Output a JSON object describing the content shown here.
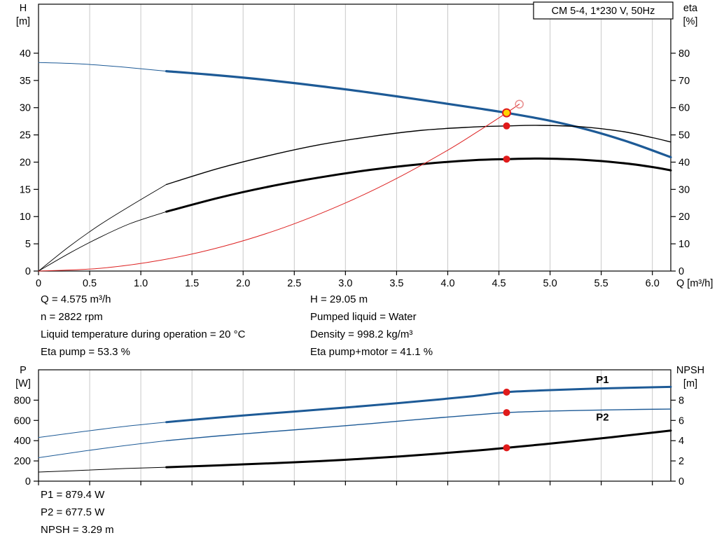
{
  "colors": {
    "curve_blue": "#1d5a96",
    "curve_black": "#000000",
    "curve_red": "#dd2222",
    "marker_red": "#e01b1b",
    "op_yellow": "#ffd500",
    "hollow_ring": "#e88f8f",
    "grid": "#c8c8c8"
  },
  "chart_data": [
    {
      "type": "line",
      "title_box": "CM 5-4, 1*230 V, 50Hz",
      "grid_color": "#c8c8c8",
      "x": {
        "label": "Q [m³/h]",
        "min": 0,
        "max": 6.18,
        "ticks": [
          0,
          0.5,
          1,
          1.5,
          2,
          2.5,
          3,
          3.5,
          4,
          4.5,
          5,
          5.5,
          6
        ],
        "tick_labels": [
          "0",
          "0.5",
          "1.0",
          "1.5",
          "2.0",
          "2.5",
          "3.0",
          "3.5",
          "4.0",
          "4.5",
          "5.0",
          "5.5",
          "6.0"
        ],
        "grid": [
          0.5,
          1,
          1.5,
          2,
          2.5,
          3,
          3.5,
          4,
          4.5,
          5,
          5.5,
          6
        ]
      },
      "y_left": {
        "title": [
          "H",
          "[m]"
        ],
        "min": 0,
        "max": 49,
        "ticks": [
          0,
          5,
          10,
          15,
          20,
          25,
          30,
          35,
          40
        ]
      },
      "y_right": {
        "title": [
          "eta",
          "[%]"
        ],
        "min": 0,
        "max": 98,
        "ticks": [
          0,
          10,
          20,
          30,
          40,
          50,
          60,
          70,
          80
        ]
      },
      "series": [
        {
          "name": "hq-curve-lead",
          "axis": "left",
          "color": "#1d5a96",
          "width": 1,
          "points": [
            [
              0,
              38.3
            ],
            [
              0.4,
              38.05
            ],
            [
              0.8,
              37.5
            ],
            [
              1.25,
              36.7
            ]
          ]
        },
        {
          "name": "hq-curve",
          "axis": "left",
          "color": "#1d5a96",
          "width": 3.2,
          "points": [
            [
              1.25,
              36.7
            ],
            [
              1.75,
              35.95
            ],
            [
              2.25,
              35.05
            ],
            [
              2.75,
              33.95
            ],
            [
              3.25,
              32.75
            ],
            [
              3.75,
              31.4
            ],
            [
              4.25,
              30.0
            ],
            [
              4.575,
              29.05
            ],
            [
              5.0,
              27.6
            ],
            [
              5.4,
              25.8
            ],
            [
              5.8,
              23.5
            ],
            [
              6.18,
              20.9
            ]
          ]
        },
        {
          "name": "eta-pump-lead",
          "axis": "right",
          "color": "#000000",
          "width": 0.9,
          "points": [
            [
              0,
              0
            ],
            [
              0.3,
              9
            ],
            [
              0.6,
              17
            ],
            [
              0.9,
              24
            ],
            [
              1.25,
              31.8
            ]
          ]
        },
        {
          "name": "eta-pump-curve",
          "axis": "right",
          "color": "#000000",
          "width": 1.4,
          "points": [
            [
              1.25,
              31.8
            ],
            [
              1.75,
              37.6
            ],
            [
              2.25,
              42.4
            ],
            [
              2.75,
              46.4
            ],
            [
              3.25,
              49.4
            ],
            [
              3.75,
              51.7
            ],
            [
              4.25,
              52.9
            ],
            [
              4.575,
              53.3
            ],
            [
              4.9,
              53.5
            ],
            [
              5.3,
              53.0
            ],
            [
              5.7,
              51.3
            ],
            [
              6.0,
              49.0
            ],
            [
              6.18,
              47.4
            ]
          ]
        },
        {
          "name": "eta-pump-motor-lead",
          "axis": "right",
          "color": "#000000",
          "width": 0.9,
          "points": [
            [
              0,
              0
            ],
            [
              0.3,
              6.5
            ],
            [
              0.6,
              12.4
            ],
            [
              0.9,
              17.5
            ],
            [
              1.25,
              21.8
            ]
          ]
        },
        {
          "name": "eta-pump-motor-curve",
          "axis": "right",
          "color": "#000000",
          "width": 3,
          "points": [
            [
              1.25,
              21.8
            ],
            [
              1.75,
              26.8
            ],
            [
              2.25,
              31.0
            ],
            [
              2.75,
              34.4
            ],
            [
              3.25,
              37.2
            ],
            [
              3.75,
              39.3
            ],
            [
              4.25,
              40.7
            ],
            [
              4.575,
              41.1
            ],
            [
              4.9,
              41.3
            ],
            [
              5.3,
              40.9
            ],
            [
              5.7,
              39.7
            ],
            [
              6.0,
              38.2
            ],
            [
              6.18,
              37.0
            ]
          ]
        },
        {
          "name": "system-curve",
          "axis": "left",
          "color": "#dd2222",
          "width": 1,
          "points": [
            [
              0,
              0
            ],
            [
              0.6,
              0.5
            ],
            [
              1.2,
              2.0
            ],
            [
              1.8,
              4.5
            ],
            [
              2.4,
              8.0
            ],
            [
              3.0,
              12.5
            ],
            [
              3.5,
              17.0
            ],
            [
              4.0,
              22.2
            ],
            [
              4.3,
              25.7
            ],
            [
              4.575,
              29.05
            ],
            [
              4.7,
              30.65
            ]
          ]
        }
      ],
      "markers": [
        {
          "name": "duty-point-hollow",
          "type": "hollow",
          "q": 4.7,
          "v": 30.65,
          "axis": "left"
        },
        {
          "name": "eta-pump-point",
          "type": "dot",
          "q": 4.575,
          "v": 53.3,
          "axis": "right"
        },
        {
          "name": "eta-pump-motor-point",
          "type": "dot",
          "q": 4.575,
          "v": 41.1,
          "axis": "right"
        },
        {
          "name": "operating-point",
          "type": "op",
          "q": 4.575,
          "v": 29.05,
          "axis": "left"
        }
      ],
      "labels": []
    },
    {
      "type": "line",
      "grid_color": "#c8c8c8",
      "x": {
        "label": "",
        "min": 0,
        "max": 6.18,
        "ticks": [
          0,
          0.5,
          1,
          1.5,
          2,
          2.5,
          3,
          3.5,
          4,
          4.5,
          5,
          5.5,
          6
        ],
        "tick_labels": [],
        "grid": [
          0.5,
          1,
          1.5,
          2,
          2.5,
          3,
          3.5,
          4,
          4.5,
          5,
          5.5,
          6
        ]
      },
      "y_left": {
        "title": [
          "P",
          "[W]"
        ],
        "min": 0,
        "max": 1100,
        "ticks": [
          0,
          200,
          400,
          600,
          800
        ]
      },
      "y_right": {
        "title": [
          "NPSH",
          "[m]"
        ],
        "min": 0,
        "max": 11,
        "ticks": [
          0,
          2,
          4,
          6,
          8
        ]
      },
      "series": [
        {
          "name": "p1-curve-lead",
          "axis": "left",
          "color": "#1d5a96",
          "width": 1,
          "points": [
            [
              0,
              432
            ],
            [
              0.45,
              492
            ],
            [
              0.85,
              542
            ],
            [
              1.25,
              583
            ]
          ]
        },
        {
          "name": "p1-curve",
          "axis": "left",
          "color": "#1d5a96",
          "width": 3,
          "points": [
            [
              1.25,
              583
            ],
            [
              1.75,
              628
            ],
            [
              2.25,
              668
            ],
            [
              2.75,
              707
            ],
            [
              3.25,
              748
            ],
            [
              3.75,
              792
            ],
            [
              4.25,
              840
            ],
            [
              4.575,
              879.4
            ],
            [
              4.95,
              897
            ],
            [
              5.4,
              913
            ],
            [
              5.9,
              926
            ],
            [
              6.18,
              931
            ]
          ]
        },
        {
          "name": "p2-curve-lead",
          "axis": "left",
          "color": "#1d5a96",
          "width": 1,
          "points": [
            [
              0,
              232
            ],
            [
              0.45,
              298
            ],
            [
              0.85,
              352
            ],
            [
              1.25,
              400
            ]
          ]
        },
        {
          "name": "p2-curve",
          "axis": "left",
          "color": "#1d5a96",
          "width": 1.4,
          "points": [
            [
              1.25,
              400
            ],
            [
              1.75,
              446
            ],
            [
              2.25,
              487
            ],
            [
              2.75,
              527
            ],
            [
              3.25,
              569
            ],
            [
              3.75,
              613
            ],
            [
              4.25,
              653
            ],
            [
              4.575,
              677.5
            ],
            [
              4.95,
              691
            ],
            [
              5.4,
              701
            ],
            [
              5.9,
              709
            ],
            [
              6.18,
              712
            ]
          ]
        },
        {
          "name": "npsh-curve-lead",
          "axis": "right",
          "color": "#000000",
          "width": 1,
          "points": [
            [
              0,
              0.9
            ],
            [
              0.45,
              1.08
            ],
            [
              0.85,
              1.25
            ],
            [
              1.25,
              1.38
            ]
          ]
        },
        {
          "name": "npsh-curve",
          "axis": "right",
          "color": "#000000",
          "width": 3,
          "points": [
            [
              1.25,
              1.38
            ],
            [
              1.75,
              1.56
            ],
            [
              2.25,
              1.76
            ],
            [
              2.75,
              1.98
            ],
            [
              3.25,
              2.26
            ],
            [
              3.75,
              2.6
            ],
            [
              4.25,
              3.0
            ],
            [
              4.575,
              3.29
            ],
            [
              4.95,
              3.66
            ],
            [
              5.4,
              4.12
            ],
            [
              5.9,
              4.68
            ],
            [
              6.18,
              5.0
            ]
          ]
        }
      ],
      "markers": [
        {
          "name": "p1-point",
          "type": "dot",
          "q": 4.575,
          "v": 879.4,
          "axis": "left"
        },
        {
          "name": "p2-point",
          "type": "dot",
          "q": 4.575,
          "v": 677.5,
          "axis": "left"
        },
        {
          "name": "npsh-point",
          "type": "dot",
          "q": 4.575,
          "v": 3.29,
          "axis": "right"
        }
      ],
      "labels": [
        {
          "name": "p1-label",
          "text": "P1",
          "q": 5.45,
          "v": 970,
          "axis": "left",
          "color": "#1d5a96"
        },
        {
          "name": "p2-label",
          "text": "P2",
          "q": 5.45,
          "v": 600,
          "axis": "left",
          "color": "#1d5a96"
        }
      ]
    }
  ],
  "info_top": {
    "col1": [
      "Q = 4.575 m³/h",
      "n = 2822 rpm",
      "Liquid temperature during operation = 20 °C",
      "Eta pump = 53.3 %"
    ],
    "col2": [
      "H = 29.05 m",
      "Pumped liquid = Water",
      "Density = 998.2 kg/m³",
      "Eta pump+motor = 41.1 %"
    ]
  },
  "info_bottom": {
    "lines": [
      "P1 = 879.4 W",
      "P2 = 677.5 W",
      "NPSH = 3.29 m"
    ]
  }
}
